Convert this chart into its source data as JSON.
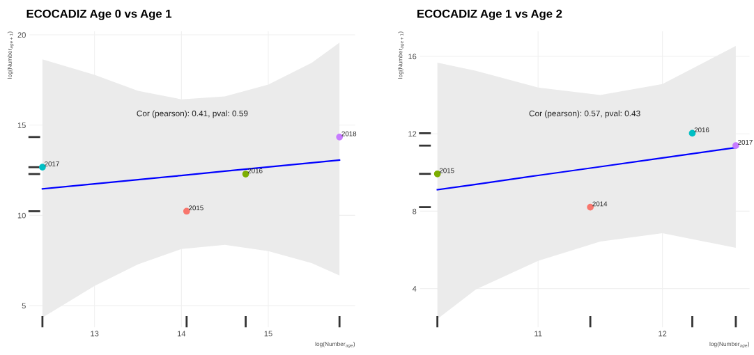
{
  "chart_data": [
    {
      "type": "scatter",
      "title": "ECOCADIZ Age 0 vs Age 1",
      "xlabel": "log(Number$_{age}$)",
      "ylabel": "log(Number$_{age+1}$)",
      "annotations": [
        "Cor (pearson): 0.41, pval: 0.59",
        {
          "text": "2015",
          "x": 14.06,
          "y": 10.23
        },
        {
          "text": "2016",
          "x": 14.74,
          "y": 12.29
        },
        {
          "text": "2017",
          "x": 12.4,
          "y": 12.67
        },
        {
          "text": "2018",
          "x": 15.82,
          "y": 14.34
        }
      ],
      "xlim": [
        12.25,
        16.0
      ],
      "ylim": [
        3.8,
        20.2
      ],
      "xticks": [
        13,
        14,
        15
      ],
      "yticks": [
        5,
        10,
        15,
        20
      ],
      "grid": true,
      "marker": "circle",
      "series": [
        {
          "x": [
            14.06,
            14.74,
            12.4,
            15.82
          ],
          "values": [
            10.23,
            12.29,
            12.67,
            14.34
          ],
          "colors": [
            "#f8766d",
            "#7cae00",
            "#00bfc4",
            "#c77cff"
          ]
        },
        {
          "type": "line",
          "marker": "none",
          "color": "#0000ff",
          "x": [
            12.4,
            13.0,
            13.5,
            14.0,
            14.5,
            15.0,
            15.5,
            15.82
          ],
          "values": [
            11.47,
            11.75,
            11.98,
            12.21,
            12.45,
            12.68,
            12.91,
            13.06
          ],
          "lower": [
            4.34,
            6.09,
            7.29,
            8.14,
            8.37,
            8.02,
            7.36,
            6.67
          ],
          "upper": [
            18.64,
            17.79,
            16.9,
            16.43,
            16.59,
            17.25,
            18.45,
            19.57
          ]
        }
      ]
    },
    {
      "type": "scatter",
      "title": "ECOCADIZ Age 1 vs Age 2",
      "xlabel": "log(Number$_{age}$)",
      "ylabel": "log(Number$_{age+1}$)",
      "annotations": [
        "Cor (pearson): 0.57, pval: 0.43",
        {
          "text": "2014",
          "x": 11.42,
          "y": 8.21
        },
        {
          "text": "2015",
          "x": 10.19,
          "y": 9.93
        },
        {
          "text": "2016",
          "x": 12.24,
          "y": 12.03
        },
        {
          "text": "2017",
          "x": 12.59,
          "y": 11.39
        }
      ],
      "xlim": [
        10.05,
        12.7
      ],
      "ylim": [
        2.0,
        17.3
      ],
      "xticks": [
        11,
        12
      ],
      "yticks": [
        4,
        8,
        12,
        16
      ],
      "grid": true,
      "marker": "circle",
      "series": [
        {
          "x": [
            11.42,
            10.19,
            12.24,
            12.59
          ],
          "values": [
            8.21,
            9.93,
            12.03,
            11.39
          ],
          "colors": [
            "#f8766d",
            "#7cae00",
            "#00bfc4",
            "#c77cff"
          ]
        },
        {
          "type": "line",
          "marker": "none",
          "color": "#0000ff",
          "x": [
            10.19,
            10.5,
            11.0,
            11.5,
            12.0,
            12.59
          ],
          "values": [
            9.11,
            9.39,
            9.85,
            10.3,
            10.75,
            11.29
          ],
          "lower": [
            2.43,
            3.96,
            5.43,
            6.43,
            6.86,
            6.11
          ],
          "upper": [
            15.68,
            15.25,
            14.39,
            14.0,
            14.57,
            16.54
          ]
        }
      ]
    }
  ]
}
